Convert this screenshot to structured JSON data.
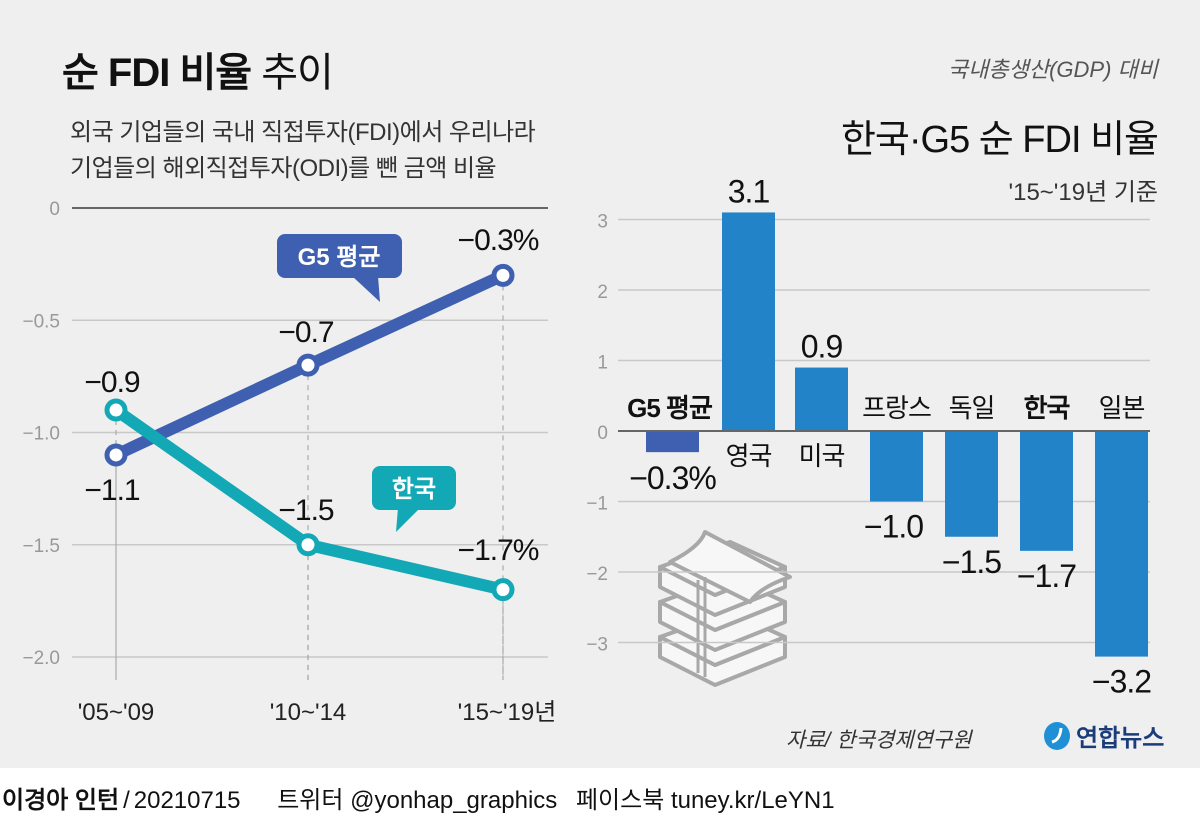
{
  "left": {
    "title_bold": "순 FDI 비율",
    "title_light": "추이",
    "subtitle_line1": "외국 기업들의 국내 직접투자(FDI)에서 우리나라",
    "subtitle_line2": "기업들의 해외직접투자(ODI)를 뺀 금액 비율"
  },
  "right": {
    "unit_note": "국내총생산(GDP) 대비",
    "title": "한국·G5 순 FDI 비율",
    "period": "'15~'19년 기준"
  },
  "source": "자료/ 한국경제연구원",
  "logo": {
    "name": "연합뉴스",
    "icon": "yonhap-logo-icon"
  },
  "footer": {
    "author": "이경아 인턴",
    "date": "20210715",
    "twitter": "트위터 @yonhap_graphics",
    "facebook": "페이스북 tuney.kr/LeYN1"
  },
  "colors": {
    "g5": "#3f5fb0",
    "korea": "#13a8b5",
    "bar": "#2383c8",
    "bar_g5": "#3f5fb0",
    "background": "#efefef"
  },
  "decoration": {
    "icon": "money-stack-icon"
  },
  "chart_data": [
    {
      "type": "line",
      "title": "순 FDI 비율 추이",
      "categories": [
        "'05~'09",
        "'10~'14",
        "'15~'19년"
      ],
      "ylim": [
        -2.0,
        0
      ],
      "yticks": [
        "0",
        "-0.5",
        "-1.0",
        "-1.5",
        "-2.0"
      ],
      "ytick_values": [
        0,
        -0.5,
        -1.0,
        -1.5,
        -2.0
      ],
      "grid": true,
      "series": [
        {
          "name": "G5 평균",
          "values": [
            -1.1,
            -0.7,
            -0.3
          ],
          "labels": [
            "-1.1",
            "-0.7",
            "-0.3%"
          ]
        },
        {
          "name": "한국",
          "values": [
            -0.9,
            -1.5,
            -1.7
          ],
          "labels": [
            "-0.9",
            "-1.5",
            "-1.7%"
          ]
        }
      ]
    },
    {
      "type": "bar",
      "title": "한국·G5 순 FDI 비율",
      "subtitle": "'15~'19년 기준",
      "categories": [
        "G5 평균",
        "영국",
        "미국",
        "프랑스",
        "독일",
        "한국",
        "일본"
      ],
      "values": [
        -0.3,
        3.1,
        0.9,
        -1.0,
        -1.5,
        -1.7,
        -3.2
      ],
      "value_labels": [
        "-0.3%",
        "3.1",
        "0.9",
        "-1.0",
        "-1.5",
        "-1.7",
        "-3.2"
      ],
      "ylim": [
        -3.5,
        3.5
      ],
      "yticks": [
        "3",
        "2",
        "1",
        "0",
        "-1",
        "-2",
        "-3"
      ],
      "ytick_values": [
        3,
        2,
        1,
        0,
        -1,
        -2,
        -3
      ],
      "grid": true,
      "bold_categories": [
        "G5 평균",
        "한국"
      ]
    }
  ]
}
